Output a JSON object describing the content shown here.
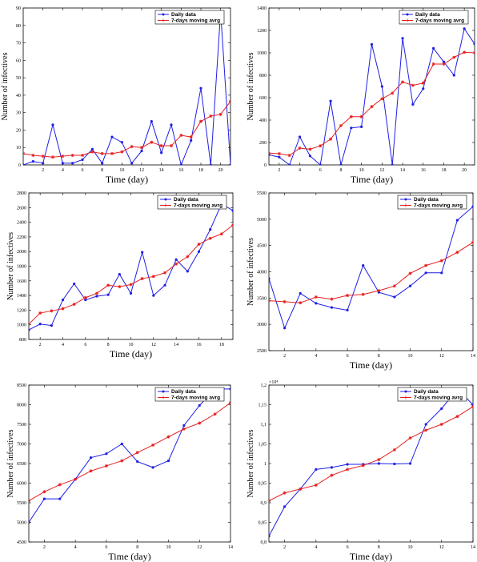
{
  "chart_data": [
    {
      "type": "line",
      "xlabel": "Time (day)",
      "ylabel": "Number of infectives",
      "xlim": [
        0,
        21
      ],
      "ylim": [
        0,
        90
      ],
      "xticks": [
        2,
        4,
        6,
        8,
        10,
        12,
        14,
        16,
        18,
        20
      ],
      "yticks": [
        0,
        10,
        20,
        30,
        40,
        50,
        60,
        70,
        80,
        90
      ],
      "legend": "top-right",
      "series": [
        {
          "name": "Daily data",
          "color": "#1f1fe6",
          "marker": "dot",
          "x": [
            0,
            1,
            2,
            3,
            4,
            5,
            6,
            7,
            8,
            9,
            10,
            11,
            12,
            13,
            14,
            15,
            16,
            17,
            18,
            19,
            20,
            21
          ],
          "y": [
            0,
            2,
            1,
            23,
            1,
            1,
            3,
            9,
            1,
            16,
            13,
            1,
            8,
            25,
            7,
            23,
            0,
            14,
            44,
            0,
            88,
            0
          ]
        },
        {
          "name": "7-days moving avrg",
          "color": "#e61f1f",
          "marker": "star",
          "x": [
            0,
            1,
            2,
            3,
            4,
            5,
            6,
            7,
            8,
            9,
            10,
            11,
            12,
            13,
            14,
            15,
            16,
            17,
            18,
            19,
            20,
            21
          ],
          "y": [
            6.5,
            5.5,
            5,
            4.5,
            5,
            5.5,
            5.5,
            7.5,
            6.5,
            6.5,
            7.5,
            10.5,
            10,
            13,
            11,
            11,
            17,
            16,
            25,
            28,
            29,
            36.5
          ]
        }
      ]
    },
    {
      "type": "line",
      "xlabel": "Time (day)",
      "ylabel": "Number of infectives",
      "xlim": [
        1,
        21
      ],
      "ylim": [
        0,
        1400
      ],
      "xticks": [
        2,
        4,
        6,
        8,
        10,
        12,
        14,
        16,
        18,
        20
      ],
      "yticks": [
        0,
        200,
        400,
        600,
        800,
        1000,
        1200,
        1400
      ],
      "legend": "top-right",
      "series": [
        {
          "name": "Daily data",
          "color": "#1f1fe6",
          "marker": "dot",
          "x": [
            1,
            2,
            3,
            4,
            5,
            6,
            7,
            8,
            9,
            10,
            11,
            12,
            13,
            14,
            15,
            16,
            17,
            18,
            19,
            20,
            21
          ],
          "y": [
            90,
            70,
            0,
            250,
            80,
            0,
            570,
            0,
            330,
            340,
            1075,
            700,
            0,
            1130,
            540,
            680,
            1040,
            920,
            800,
            1215,
            1080
          ]
        },
        {
          "name": "7-days moving avrg",
          "color": "#e61f1f",
          "marker": "star",
          "x": [
            1,
            2,
            3,
            4,
            5,
            6,
            7,
            8,
            9,
            10,
            11,
            12,
            13,
            14,
            15,
            16,
            17,
            18,
            19,
            20,
            21
          ],
          "y": [
            105,
            100,
            85,
            150,
            140,
            170,
            230,
            350,
            430,
            430,
            520,
            590,
            640,
            740,
            710,
            730,
            900,
            900,
            960,
            1005,
            1000
          ]
        }
      ]
    },
    {
      "type": "line",
      "xlabel": "Time (day)",
      "ylabel": "Number of infectives",
      "xlim": [
        1,
        19
      ],
      "ylim": [
        800,
        2800
      ],
      "xticks": [
        2,
        4,
        6,
        8,
        10,
        12,
        14,
        16,
        18
      ],
      "yticks": [
        800,
        1000,
        1200,
        1400,
        1600,
        1800,
        2000,
        2200,
        2400,
        2600,
        2800
      ],
      "legend": "top-right",
      "series": [
        {
          "name": "Daily data",
          "color": "#1f1fe6",
          "marker": "dot",
          "x": [
            1,
            2,
            3,
            4,
            5,
            6,
            7,
            8,
            9,
            10,
            11,
            12,
            13,
            14,
            15,
            16,
            17,
            18,
            19
          ],
          "y": [
            930,
            1010,
            990,
            1340,
            1560,
            1340,
            1390,
            1410,
            1690,
            1430,
            1990,
            1400,
            1540,
            1890,
            1730,
            2000,
            2300,
            2650,
            2560
          ]
        },
        {
          "name": "7-days moving avrg",
          "color": "#e61f1f",
          "marker": "star",
          "x": [
            1,
            2,
            3,
            4,
            5,
            6,
            7,
            8,
            9,
            10,
            11,
            12,
            13,
            14,
            15,
            16,
            17,
            18,
            19
          ],
          "y": [
            1010,
            1160,
            1190,
            1220,
            1280,
            1370,
            1430,
            1540,
            1520,
            1550,
            1630,
            1660,
            1710,
            1830,
            1930,
            2100,
            2180,
            2240,
            2360
          ]
        }
      ]
    },
    {
      "type": "line",
      "xlabel": "Time (day)",
      "ylabel": "Number of infectives",
      "xlim": [
        1,
        14
      ],
      "ylim": [
        2500,
        5500
      ],
      "xticks": [
        2,
        4,
        6,
        8,
        10,
        12,
        14
      ],
      "yticks": [
        2500,
        3000,
        3500,
        4000,
        4500,
        5000,
        5500
      ],
      "legend": "top-right",
      "series": [
        {
          "name": "Daily data",
          "color": "#1f1fe6",
          "marker": "dot",
          "x": [
            1,
            2,
            3,
            4,
            5,
            6,
            7,
            8,
            9,
            10,
            11,
            12,
            13,
            14
          ],
          "y": [
            3870,
            2930,
            3590,
            3400,
            3320,
            3270,
            4120,
            3610,
            3520,
            3730,
            3980,
            3980,
            4980,
            5240
          ]
        },
        {
          "name": "7-days moving avrg",
          "color": "#e61f1f",
          "marker": "star",
          "x": [
            1,
            2,
            3,
            4,
            5,
            6,
            7,
            8,
            9,
            10,
            11,
            12,
            13,
            14
          ],
          "y": [
            3450,
            3430,
            3410,
            3520,
            3480,
            3550,
            3570,
            3640,
            3730,
            3970,
            4120,
            4210,
            4370,
            4560
          ]
        }
      ]
    },
    {
      "type": "line",
      "xlabel": "Time (day)",
      "ylabel": "Number of infectives",
      "xlim": [
        1,
        14
      ],
      "ylim": [
        4500,
        8500
      ],
      "xticks": [
        2,
        4,
        6,
        8,
        10,
        12,
        14
      ],
      "yticks": [
        4500,
        5000,
        5500,
        6000,
        6500,
        7000,
        7500,
        8000,
        8500
      ],
      "legend": "top-right",
      "series": [
        {
          "name": "Daily data",
          "color": "#1f1fe6",
          "marker": "dot",
          "x": [
            1,
            2,
            3,
            4,
            5,
            6,
            7,
            8,
            9,
            10,
            11,
            12,
            13,
            14
          ],
          "y": [
            5000,
            5600,
            5600,
            6100,
            6650,
            6750,
            7000,
            6550,
            6400,
            6570,
            7470,
            7980,
            8400,
            8400
          ]
        },
        {
          "name": "7-days moving avrg",
          "color": "#e61f1f",
          "marker": "star",
          "x": [
            1,
            2,
            3,
            4,
            5,
            6,
            7,
            8,
            9,
            10,
            11,
            12,
            13,
            14
          ],
          "y": [
            5550,
            5780,
            5960,
            6100,
            6310,
            6440,
            6570,
            6780,
            6970,
            7180,
            7380,
            7530,
            7760,
            8050
          ]
        }
      ]
    },
    {
      "type": "line",
      "xlabel": "Time (day)",
      "ylabel": "Number of infectives",
      "xlim": [
        1,
        14
      ],
      "ylim": [
        0.8,
        1.2
      ],
      "xticks": [
        2,
        4,
        6,
        8,
        10,
        12,
        14
      ],
      "yticks": [
        0.8,
        0.85,
        0.9,
        0.95,
        1,
        1.05,
        1.1,
        1.15,
        1.2
      ],
      "ytick_labels": [
        "0,8",
        "0,85",
        "0,9",
        "0,95",
        "1",
        "1,05",
        "1,1",
        "1,15",
        "1,2"
      ],
      "y_exponent_label": "×10⁴",
      "legend": "top-right",
      "series": [
        {
          "name": "Daily data",
          "color": "#1f1fe6",
          "marker": "dot",
          "x": [
            1,
            2,
            3,
            4,
            5,
            6,
            7,
            8,
            9,
            10,
            11,
            12,
            13,
            14
          ],
          "y": [
            0.815,
            0.89,
            0.935,
            0.985,
            0.99,
            0.998,
            0.998,
            1.0,
            0.999,
            1.0,
            1.1,
            1.14,
            1.19,
            1.15
          ]
        },
        {
          "name": "7-days moving avrg",
          "color": "#e61f1f",
          "marker": "star",
          "x": [
            1,
            2,
            3,
            4,
            5,
            6,
            7,
            8,
            9,
            10,
            11,
            12,
            13,
            14
          ],
          "y": [
            0.905,
            0.925,
            0.935,
            0.945,
            0.97,
            0.985,
            0.995,
            1.01,
            1.035,
            1.065,
            1.085,
            1.1,
            1.12,
            1.145
          ]
        }
      ]
    }
  ]
}
